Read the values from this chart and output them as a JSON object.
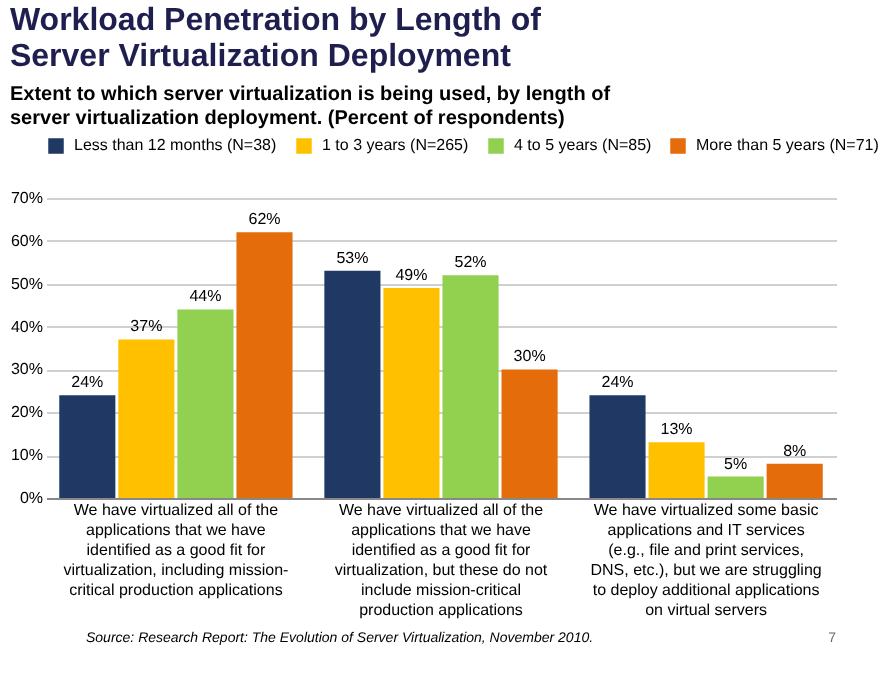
{
  "chart_data": {
    "type": "bar",
    "title": "Workload Penetration by Length of Server Virtualization Deployment",
    "subtitle": "Extent to which server virtualization is being used, by length of server virtualization deployment. (Percent of respondents)",
    "categories": [
      "We have virtualized all of the applications that we have identified as a good fit for virtualization, including mission-critical production applications",
      "We have virtualized all of the applications that we have identified as a good fit for virtualization, but these do not include mission-critical production applications",
      "We have virtualized some basic applications and IT services (e.g., file and print services, DNS, etc.), but we are struggling to deploy additional applications on virtual servers"
    ],
    "series": [
      {
        "name": "Less than 12 months (N=38)",
        "color": "#1f3864",
        "values": [
          24,
          53,
          24
        ],
        "value_labels": [
          "24%",
          "53%",
          "24%"
        ]
      },
      {
        "name": "1 to 3 years (N=265)",
        "color": "#ffc000",
        "values": [
          37,
          49,
          13
        ],
        "value_labels": [
          "37%",
          "49%",
          "13%"
        ]
      },
      {
        "name": "4 to 5 years (N=85)",
        "color": "#92d050",
        "values": [
          44,
          52,
          5
        ],
        "value_labels": [
          "44%",
          "52%",
          "5%"
        ]
      },
      {
        "name": "More than 5 years (N=71)",
        "color": "#e46c0a",
        "values": [
          62,
          30,
          8
        ],
        "value_labels": [
          "62%",
          "30%",
          "8%"
        ]
      }
    ],
    "ylim": [
      0,
      70
    ],
    "yticks": [
      {
        "value": 0,
        "label": "0%"
      },
      {
        "value": 10,
        "label": "10%"
      },
      {
        "value": 20,
        "label": "20%"
      },
      {
        "value": 30,
        "label": "30%"
      },
      {
        "value": 40,
        "label": "40%"
      },
      {
        "value": 50,
        "label": "50%"
      },
      {
        "value": 60,
        "label": "60%"
      },
      {
        "value": 70,
        "label": "70%"
      }
    ],
    "grid": "y",
    "legend": "top",
    "annotations": [
      "Source: Research Report: The Evolution of Server Virtualization, November 2010.",
      "7"
    ]
  }
}
